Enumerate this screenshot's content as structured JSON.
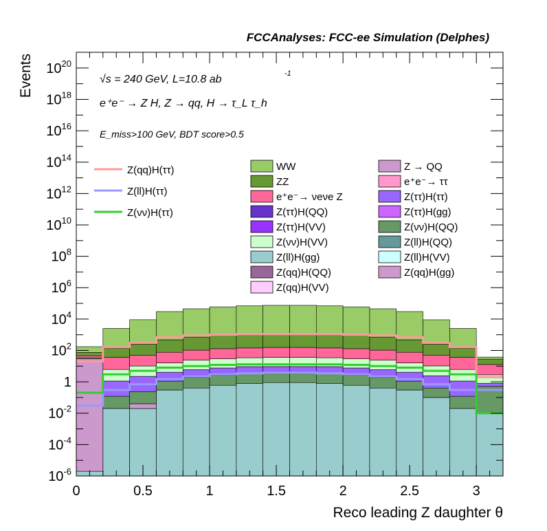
{
  "chart_data": {
    "type": "histogram",
    "title": "FCCAnalyses: FCC-ee Simulation (Delphes)",
    "xlabel": "Reco leading Z daughter θ",
    "ylabel": "Events",
    "y_scale": "log",
    "xlim": [
      0,
      3.2
    ],
    "ylim": [
      1e-06,
      1e+21
    ],
    "x_ticks": [
      {
        "v": 0,
        "label": "0"
      },
      {
        "v": 0.5,
        "label": "0.5"
      },
      {
        "v": 1,
        "label": "1"
      },
      {
        "v": 1.5,
        "label": "1.5"
      },
      {
        "v": 2,
        "label": "2"
      },
      {
        "v": 2.5,
        "label": "2.5"
      },
      {
        "v": 3,
        "label": "3"
      }
    ],
    "y_ticks": [
      {
        "exp": -6,
        "base": "10",
        "sup": "-6"
      },
      {
        "exp": -4,
        "base": "10",
        "sup": "-4"
      },
      {
        "exp": -2,
        "base": "10",
        "sup": "-2"
      },
      {
        "exp": 0,
        "base": "1",
        "sup": ""
      },
      {
        "exp": 2,
        "base": "10",
        "sup": "2"
      },
      {
        "exp": 4,
        "base": "10",
        "sup": "4"
      },
      {
        "exp": 6,
        "base": "10",
        "sup": "6"
      },
      {
        "exp": 8,
        "base": "10",
        "sup": "8"
      },
      {
        "exp": 10,
        "base": "10",
        "sup": "10"
      },
      {
        "exp": 12,
        "base": "10",
        "sup": "12"
      },
      {
        "exp": 14,
        "base": "10",
        "sup": "14"
      },
      {
        "exp": 16,
        "base": "10",
        "sup": "16"
      },
      {
        "exp": 18,
        "base": "10",
        "sup": "18"
      },
      {
        "exp": 20,
        "base": "10",
        "sup": "20"
      }
    ],
    "annotations": {
      "sqrt_s": "√s = 240 GeV, L=10.8 ab",
      "lumi_exp": "-1",
      "process": "e⁺e⁻ → Z H, Z → qq, H → τ_L τ_h",
      "selection": "E_miss>100 GeV, BDT score>0.5"
    },
    "bin_edges": [
      0,
      0.2,
      0.4,
      0.6,
      0.8,
      1.0,
      1.2,
      1.4,
      1.6,
      1.8,
      2.0,
      2.2,
      2.4,
      2.6,
      2.8,
      3.0,
      3.2
    ],
    "stack_totals": [
      150,
      2500,
      9000,
      30000,
      45000,
      60000,
      70000,
      75000,
      75000,
      70000,
      60000,
      45000,
      30000,
      9000,
      2500,
      40
    ],
    "stack_layers": [
      {
        "color": "#99cccc",
        "values": [
          1e-06,
          0.02,
          0.02,
          0.3,
          0.4,
          0.6,
          0.8,
          0.9,
          0.9,
          0.8,
          0.6,
          0.4,
          0.3,
          0.1,
          0.02,
          0.01
        ]
      },
      {
        "color": "#cc99cc",
        "values": [
          30,
          1e-06,
          0.02,
          1e-06,
          1e-06,
          1e-06,
          1e-06,
          1e-06,
          1e-06,
          1e-06,
          1e-06,
          1e-06,
          1e-06,
          1e-06,
          1e-06,
          1e-06
        ]
      },
      {
        "color": "#669966",
        "values": [
          0.5,
          0.1,
          0.2,
          0.8,
          1.5,
          2,
          2.5,
          2.5,
          2.5,
          2.5,
          2,
          1.5,
          0.8,
          0.3,
          0.1,
          0.5
        ]
      },
      {
        "color": "#9966ff",
        "values": [
          0.3,
          1,
          2,
          3,
          4,
          5,
          6,
          6,
          6,
          6,
          5,
          4,
          3,
          2,
          1,
          0.3
        ]
      },
      {
        "color": "#ccffcc",
        "values": [
          3,
          5,
          8,
          12,
          18,
          22,
          25,
          27,
          27,
          25,
          22,
          18,
          12,
          8,
          5,
          2
        ]
      },
      {
        "color": "#ff6699",
        "values": [
          10,
          30,
          40,
          60,
          80,
          100,
          110,
          120,
          120,
          110,
          100,
          80,
          60,
          40,
          30,
          10
        ]
      },
      {
        "color": "#669933",
        "values": [
          30,
          100,
          200,
          400,
          600,
          800,
          900,
          950,
          950,
          900,
          800,
          600,
          400,
          200,
          100,
          15
        ]
      },
      {
        "color": "#99cc66",
        "values": [
          100,
          2400,
          8800,
          29500,
          44300,
          59000,
          69000,
          73900,
          73900,
          69000,
          59000,
          44300,
          29500,
          8700,
          2400,
          10
        ]
      }
    ],
    "series": [
      {
        "name": "Z(qq)H(ττ)",
        "color": "#ff9999",
        "values": [
          20,
          160,
          300,
          700,
          900,
          1000,
          1100,
          1100,
          1100,
          1100,
          1000,
          900,
          700,
          300,
          160,
          2
        ]
      },
      {
        "name": "Z(ll)H(ττ)",
        "color": "#9999ff",
        "values": [
          0.03,
          0.3,
          0.7,
          1.5,
          2.2,
          3,
          3.5,
          3.8,
          3.8,
          3.5,
          3,
          2.2,
          1.5,
          0.7,
          0.3,
          0.3
        ]
      },
      {
        "name": "Z(νν)H(ττ)",
        "color": "#33cc33",
        "values": [
          0.2,
          3,
          5,
          8,
          10,
          12,
          13,
          13,
          13,
          13,
          12,
          10,
          8,
          5,
          3,
          0.01
        ]
      }
    ],
    "legend_left": [
      {
        "label": "Z(qq)H(ττ)",
        "color": "#ff9999"
      },
      {
        "label": "Z(ll)H(ττ)",
        "color": "#9999ff"
      },
      {
        "label": "Z(νν)H(ττ)",
        "color": "#33cc33"
      }
    ],
    "legend_col1": [
      {
        "label": "WW",
        "color": "#99cc66"
      },
      {
        "label": "ZZ",
        "color": "#669933"
      },
      {
        "label": "e⁺e⁻→ νeνe Z",
        "color": "#ff6699"
      },
      {
        "label": "Z(ττ)H(QQ)",
        "color": "#6633cc"
      },
      {
        "label": "Z(ττ)H(VV)",
        "color": "#9933ff"
      },
      {
        "label": "Z(νν)H(VV)",
        "color": "#ccffcc"
      },
      {
        "label": "Z(ll)H(gg)",
        "color": "#99cccc"
      },
      {
        "label": "Z(qq)H(QQ)",
        "color": "#996699"
      },
      {
        "label": "Z(qq)H(VV)",
        "color": "#ffccff"
      }
    ],
    "legend_col2": [
      {
        "label": "Z → QQ",
        "color": "#cc99cc"
      },
      {
        "label": "e⁺e⁻→ ττ",
        "color": "#ff99cc"
      },
      {
        "label": "Z(ττ)H(ττ)",
        "color": "#9966ff"
      },
      {
        "label": "Z(ττ)H(gg)",
        "color": "#cc66ff"
      },
      {
        "label": "Z(νν)H(QQ)",
        "color": "#669966"
      },
      {
        "label": "Z(ll)H(QQ)",
        "color": "#669999"
      },
      {
        "label": "Z(ll)H(VV)",
        "color": "#ccffff"
      },
      {
        "label": "Z(qq)H(gg)",
        "color": "#cc99cc"
      }
    ]
  }
}
